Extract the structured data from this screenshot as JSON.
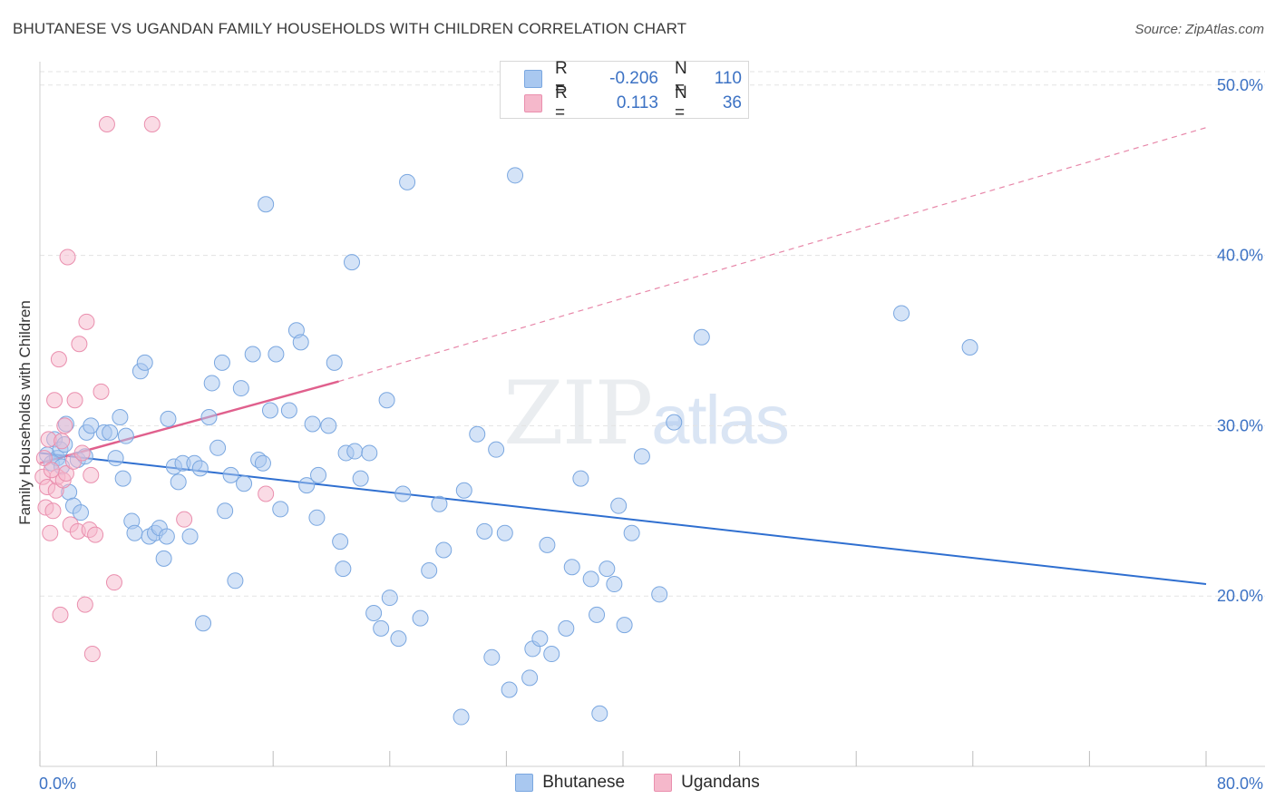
{
  "title": "BHUTANESE VS UGANDAN FAMILY HOUSEHOLDS WITH CHILDREN CORRELATION CHART",
  "source": "Source: ZipAtlas.com",
  "watermark": {
    "zip": "ZIP",
    "atlas": "atlas"
  },
  "legend": {
    "rows": [
      {
        "r_label": "R =",
        "r_value": "-0.206",
        "n_label": "N =",
        "n_value": "110",
        "color": "#a9c8f0"
      },
      {
        "r_label": "R =",
        "r_value": "0.113",
        "n_label": "N =",
        "n_value": "36",
        "color": "#f5b8cb"
      }
    ]
  },
  "bottom_legend": [
    {
      "label": "Bhutanese",
      "color": "#a9c8f0"
    },
    {
      "label": "Ugandans",
      "color": "#f5b8cb"
    }
  ],
  "chart_data": {
    "type": "scatter",
    "title": "BHUTANESE VS UGANDAN FAMILY HOUSEHOLDS WITH CHILDREN CORRELATION CHART",
    "xlabel": "",
    "ylabel": "Family Households with Children",
    "xlim": [
      0,
      80
    ],
    "ylim": [
      10,
      51
    ],
    "x_tick_labels": [
      "0.0%",
      "80.0%"
    ],
    "y_ticks": [
      20,
      30,
      40,
      50
    ],
    "y_tick_labels": [
      "20.0%",
      "30.0%",
      "40.0%",
      "50.0%"
    ],
    "grid": true,
    "series": [
      {
        "name": "Bhutanese",
        "color": "#a9c8f0",
        "stroke": "#7aa7e0",
        "trend": {
          "x": [
            0,
            80
          ],
          "y": [
            28.4,
            20.7
          ],
          "color": "#2f6fd0",
          "style": "solid"
        },
        "points": [
          [
            0.5,
            28.3
          ],
          [
            0.8,
            27.8
          ],
          [
            1.0,
            29.2
          ],
          [
            1.2,
            28.1
          ],
          [
            1.4,
            28.6
          ],
          [
            1.5,
            27.6
          ],
          [
            1.7,
            28.9
          ],
          [
            1.8,
            30.1
          ],
          [
            2.0,
            26.1
          ],
          [
            2.3,
            25.3
          ],
          [
            2.8,
            24.9
          ],
          [
            2.6,
            28.0
          ],
          [
            3.1,
            28.2
          ],
          [
            3.2,
            29.6
          ],
          [
            3.5,
            30.0
          ],
          [
            4.4,
            29.6
          ],
          [
            4.8,
            29.6
          ],
          [
            5.2,
            28.1
          ],
          [
            5.5,
            30.5
          ],
          [
            5.7,
            26.9
          ],
          [
            5.9,
            29.4
          ],
          [
            6.3,
            24.4
          ],
          [
            6.5,
            23.7
          ],
          [
            6.9,
            33.2
          ],
          [
            7.2,
            33.7
          ],
          [
            7.5,
            23.5
          ],
          [
            7.9,
            23.7
          ],
          [
            8.2,
            24.0
          ],
          [
            8.5,
            22.2
          ],
          [
            8.7,
            23.5
          ],
          [
            8.8,
            30.4
          ],
          [
            9.2,
            27.6
          ],
          [
            9.5,
            26.7
          ],
          [
            9.8,
            27.8
          ],
          [
            10.3,
            23.5
          ],
          [
            10.6,
            27.8
          ],
          [
            11.0,
            27.5
          ],
          [
            11.2,
            18.4
          ],
          [
            11.6,
            30.5
          ],
          [
            11.8,
            32.5
          ],
          [
            12.2,
            28.7
          ],
          [
            12.5,
            33.7
          ],
          [
            12.7,
            25.0
          ],
          [
            13.1,
            27.1
          ],
          [
            13.4,
            20.9
          ],
          [
            13.8,
            32.2
          ],
          [
            14.0,
            26.6
          ],
          [
            14.6,
            34.2
          ],
          [
            15.0,
            28.0
          ],
          [
            15.3,
            27.8
          ],
          [
            15.5,
            43.0
          ],
          [
            15.8,
            30.9
          ],
          [
            16.2,
            34.2
          ],
          [
            16.5,
            25.1
          ],
          [
            17.1,
            30.9
          ],
          [
            17.6,
            35.6
          ],
          [
            17.9,
            34.9
          ],
          [
            18.3,
            26.5
          ],
          [
            18.7,
            30.1
          ],
          [
            19.0,
            24.6
          ],
          [
            19.1,
            27.1
          ],
          [
            19.8,
            30.0
          ],
          [
            20.2,
            33.7
          ],
          [
            20.6,
            23.2
          ],
          [
            20.8,
            21.6
          ],
          [
            21.0,
            28.4
          ],
          [
            21.4,
            39.6
          ],
          [
            21.6,
            28.5
          ],
          [
            22.0,
            26.9
          ],
          [
            22.6,
            28.4
          ],
          [
            22.9,
            19.0
          ],
          [
            23.4,
            18.1
          ],
          [
            23.8,
            31.5
          ],
          [
            24.0,
            19.9
          ],
          [
            24.6,
            17.5
          ],
          [
            24.9,
            26.0
          ],
          [
            25.2,
            44.3
          ],
          [
            26.1,
            18.7
          ],
          [
            26.7,
            21.5
          ],
          [
            27.4,
            25.4
          ],
          [
            27.7,
            22.7
          ],
          [
            28.9,
            12.9
          ],
          [
            29.1,
            26.2
          ],
          [
            30.0,
            29.5
          ],
          [
            30.5,
            23.8
          ],
          [
            31.0,
            16.4
          ],
          [
            31.3,
            28.6
          ],
          [
            31.9,
            23.7
          ],
          [
            32.2,
            14.5
          ],
          [
            32.6,
            44.7
          ],
          [
            33.6,
            15.2
          ],
          [
            33.8,
            16.9
          ],
          [
            34.3,
            17.5
          ],
          [
            34.8,
            23.0
          ],
          [
            35.1,
            16.6
          ],
          [
            36.1,
            18.1
          ],
          [
            36.5,
            21.7
          ],
          [
            37.1,
            26.9
          ],
          [
            37.8,
            21.0
          ],
          [
            38.2,
            18.9
          ],
          [
            38.4,
            13.1
          ],
          [
            38.9,
            21.6
          ],
          [
            39.4,
            20.7
          ],
          [
            39.7,
            25.3
          ],
          [
            40.1,
            18.3
          ],
          [
            40.6,
            23.7
          ],
          [
            41.3,
            28.2
          ],
          [
            42.5,
            20.1
          ],
          [
            43.5,
            30.2
          ],
          [
            45.4,
            35.2
          ],
          [
            59.1,
            36.6
          ],
          [
            63.8,
            34.6
          ]
        ]
      },
      {
        "name": "Ugandans",
        "color": "#f5b8cb",
        "stroke": "#ea8fae",
        "trend": {
          "x": [
            0,
            20.5,
            80
          ],
          "y": [
            27.8,
            32.6,
            47.5
          ],
          "color": "#e0608d",
          "style": "solid-then-dashed"
        },
        "points": [
          [
            0.2,
            27.0
          ],
          [
            0.4,
            25.2
          ],
          [
            0.5,
            26.4
          ],
          [
            0.6,
            29.2
          ],
          [
            0.7,
            23.7
          ],
          [
            0.9,
            25.0
          ],
          [
            1.0,
            31.5
          ],
          [
            1.1,
            26.2
          ],
          [
            1.2,
            27.0
          ],
          [
            1.3,
            33.9
          ],
          [
            1.4,
            18.9
          ],
          [
            1.6,
            26.8
          ],
          [
            1.7,
            30.0
          ],
          [
            1.8,
            27.2
          ],
          [
            1.9,
            39.9
          ],
          [
            2.1,
            24.2
          ],
          [
            2.3,
            27.9
          ],
          [
            2.4,
            31.5
          ],
          [
            2.6,
            23.8
          ],
          [
            2.7,
            34.8
          ],
          [
            2.9,
            28.4
          ],
          [
            3.1,
            19.5
          ],
          [
            3.2,
            36.1
          ],
          [
            3.4,
            23.9
          ],
          [
            3.5,
            27.1
          ],
          [
            3.6,
            16.6
          ],
          [
            3.8,
            23.6
          ],
          [
            4.2,
            32.0
          ],
          [
            4.6,
            47.7
          ],
          [
            5.1,
            20.8
          ],
          [
            7.7,
            47.7
          ],
          [
            9.9,
            24.5
          ],
          [
            15.5,
            26.0
          ],
          [
            0.3,
            28.1
          ],
          [
            0.8,
            27.4
          ],
          [
            1.5,
            29.1
          ]
        ]
      }
    ]
  }
}
